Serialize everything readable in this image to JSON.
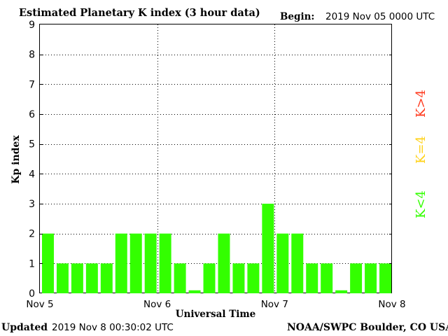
{
  "header": {
    "title": "Estimated Planetary K index (3 hour data)",
    "begin_label": "Begin:",
    "begin_value": "2019 Nov 05 0000 UTC"
  },
  "footer": {
    "updated_label": "Updated",
    "updated_value": "2019 Nov  8 00:30:02 UTC",
    "credit": "NOAA/SWPC Boulder, CO USA"
  },
  "legend": [
    {
      "label": "K>4",
      "color": "#ff3b1f"
    },
    {
      "label": "K=4",
      "color": "#ffd21a"
    },
    {
      "label": "K<4",
      "color": "#33ff00"
    }
  ],
  "chart_data": {
    "type": "bar",
    "title": "Estimated Planetary K index (3 hour data)",
    "xlabel": "Universal Time",
    "ylabel": "Kp index",
    "ylim": [
      0,
      9
    ],
    "yticks": [
      0,
      1,
      2,
      3,
      4,
      5,
      6,
      7,
      8,
      9
    ],
    "xticks": [
      "Nov 5",
      "Nov 6",
      "Nov 7",
      "Nov 8"
    ],
    "grid": true,
    "bar_color": "#33ff00",
    "values": [
      2,
      1,
      1,
      1,
      1,
      2,
      2,
      2,
      2,
      1,
      0.1,
      1,
      2,
      1,
      1,
      3,
      2,
      2,
      1,
      1,
      0.1,
      1,
      1,
      1
    ]
  }
}
